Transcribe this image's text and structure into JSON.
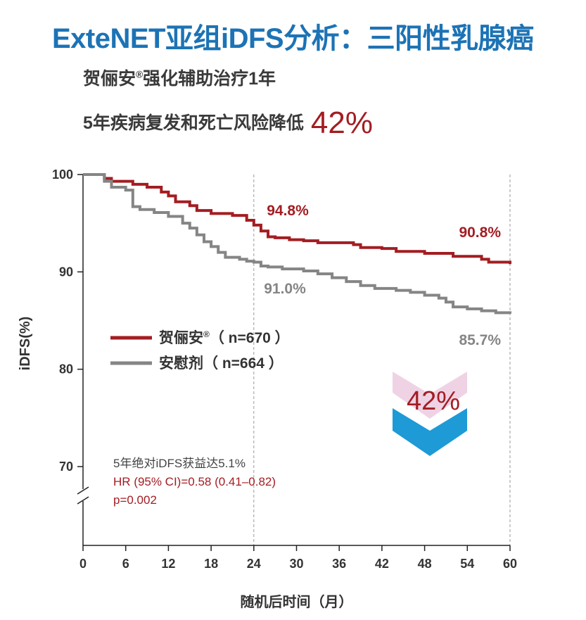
{
  "headline": "ExteNET亚组iDFS分析：三阳性乳腺癌",
  "subtitle_line1": {
    "text": "贺俪安",
    "sup": "®",
    "rest": "强化辅助治疗1年"
  },
  "subtitle_line2": {
    "text": "5年疾病复发和死亡风险降低",
    "highlight": "42%"
  },
  "colors": {
    "headline": "#1c73b5",
    "neratinib": "#a31d22",
    "placebo": "#858585",
    "arrow_pink": "#efd3e4",
    "arrow_blue": "#1e9ad6"
  },
  "chart_data": {
    "type": "line",
    "xlabel": "随机后时间（月）",
    "ylabel": "iDFS(%)",
    "xlim": [
      0,
      60
    ],
    "ylim": [
      70,
      100
    ],
    "x_ticks": [
      "0",
      "6",
      "12",
      "18",
      "24",
      "30",
      "36",
      "42",
      "48",
      "54",
      "60"
    ],
    "y_ticks": [
      "70",
      "80",
      "90",
      "100"
    ],
    "reference_lines_x": [
      24,
      60
    ],
    "series": [
      {
        "name": "贺俪安®（n=670）",
        "values": [
          [
            0,
            100
          ],
          [
            2,
            100
          ],
          [
            3,
            99.6
          ],
          [
            4,
            99.3
          ],
          [
            6,
            99.3
          ],
          [
            7,
            99.0
          ],
          [
            9,
            98.7
          ],
          [
            11,
            98.2
          ],
          [
            12,
            97.8
          ],
          [
            13,
            97.2
          ],
          [
            15,
            96.8
          ],
          [
            16,
            96.3
          ],
          [
            18,
            96.0
          ],
          [
            21,
            95.8
          ],
          [
            23,
            95.3
          ],
          [
            24,
            94.8
          ],
          [
            25,
            94.2
          ],
          [
            26,
            93.6
          ],
          [
            27,
            93.5
          ],
          [
            29,
            93.3
          ],
          [
            31,
            93.2
          ],
          [
            33,
            93.0
          ],
          [
            37,
            93.0
          ],
          [
            38,
            92.8
          ],
          [
            39,
            92.5
          ],
          [
            42,
            92.4
          ],
          [
            44,
            92.1
          ],
          [
            48,
            91.9
          ],
          [
            52,
            91.6
          ],
          [
            56,
            91.3
          ],
          [
            57,
            91.0
          ],
          [
            60,
            90.8
          ]
        ]
      },
      {
        "name": "安慰剂（n=664）",
        "values": [
          [
            0,
            100
          ],
          [
            2,
            100
          ],
          [
            3,
            99.3
          ],
          [
            4,
            98.7
          ],
          [
            6,
            98.4
          ],
          [
            7,
            96.7
          ],
          [
            8,
            96.4
          ],
          [
            10,
            96.1
          ],
          [
            12,
            95.7
          ],
          [
            14,
            95.0
          ],
          [
            15,
            94.5
          ],
          [
            16,
            93.8
          ],
          [
            17,
            93.1
          ],
          [
            18,
            92.6
          ],
          [
            19,
            92.0
          ],
          [
            20,
            91.5
          ],
          [
            22,
            91.3
          ],
          [
            23,
            91.1
          ],
          [
            24,
            91.0
          ],
          [
            25,
            90.6
          ],
          [
            26,
            90.5
          ],
          [
            28,
            90.3
          ],
          [
            31,
            90.1
          ],
          [
            33,
            89.8
          ],
          [
            35,
            89.4
          ],
          [
            37,
            89.0
          ],
          [
            39,
            88.6
          ],
          [
            41,
            88.3
          ],
          [
            44,
            88.1
          ],
          [
            46,
            87.9
          ],
          [
            48,
            87.6
          ],
          [
            50,
            87.3
          ],
          [
            51,
            86.9
          ],
          [
            52,
            86.4
          ],
          [
            54,
            86.2
          ],
          [
            56,
            86.0
          ],
          [
            58,
            85.8
          ],
          [
            60,
            85.7
          ]
        ]
      }
    ],
    "data_labels": [
      {
        "series": 0,
        "x": 24,
        "text": "94.8%"
      },
      {
        "series": 1,
        "x": 24,
        "text": "91.0%"
      },
      {
        "series": 0,
        "x": 60,
        "text": "90.8%"
      },
      {
        "series": 1,
        "x": 60,
        "text": "85.7%"
      }
    ],
    "legend": [
      {
        "label": "贺俪安",
        "sup": "®",
        "rest": "（ n=670 ）"
      },
      {
        "label": "安慰剂",
        "sup": "",
        "rest": "（ n=664 ）"
      }
    ],
    "risk_reduction_badge": "42%",
    "annotations": [
      "5年绝对iDFS获益达5.1%",
      "HR (95% CI)=0.58 (0.41–0.82)",
      "p=0.002"
    ]
  }
}
